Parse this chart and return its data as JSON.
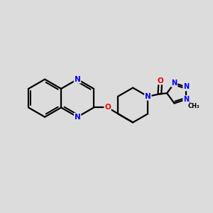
{
  "background_color": "#dcdcdc",
  "bond_color": "#000000",
  "N_color": "#0000ee",
  "O_color": "#ee0000",
  "C_color": "#000000",
  "line_width": 1.6,
  "figsize": [
    3.0,
    3.0
  ],
  "dpi": 100,
  "xlim": [
    0,
    10
  ],
  "ylim": [
    0,
    10
  ]
}
